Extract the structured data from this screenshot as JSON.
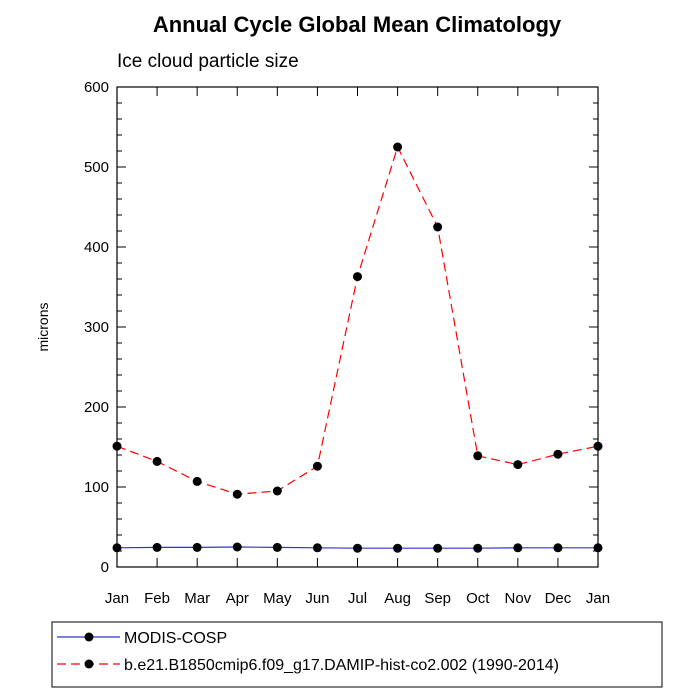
{
  "chart_data": {
    "type": "line",
    "title": "Annual Cycle Global Mean Climatology",
    "subtitle": "Ice cloud particle size",
    "xlabel": "",
    "ylabel": "microns",
    "categories": [
      "Jan",
      "Feb",
      "Mar",
      "Apr",
      "May",
      "Jun",
      "Jul",
      "Aug",
      "Sep",
      "Oct",
      "Nov",
      "Dec",
      "Jan"
    ],
    "ylim": [
      0,
      600
    ],
    "yticks": [
      0,
      100,
      200,
      300,
      400,
      500,
      600
    ],
    "grid": false,
    "legend_position": "bottom",
    "series": [
      {
        "name": "MODIS-COSP",
        "color": "#3333cc",
        "line_style": "solid",
        "marker": "filled-circle",
        "values": [
          24,
          24.5,
          24.5,
          25,
          24.5,
          24,
          23.5,
          23.5,
          23.5,
          23.5,
          24,
          24,
          24
        ]
      },
      {
        "name": "b.e21.B1850cmip6.f09_g17.DAMIP-hist-co2.002 (1990-2014)",
        "color": "#ff0000",
        "line_style": "dashed",
        "marker": "filled-circle",
        "values": [
          151,
          132,
          107,
          91,
          95,
          126,
          363,
          525,
          425,
          139,
          128,
          141,
          151
        ]
      }
    ]
  }
}
